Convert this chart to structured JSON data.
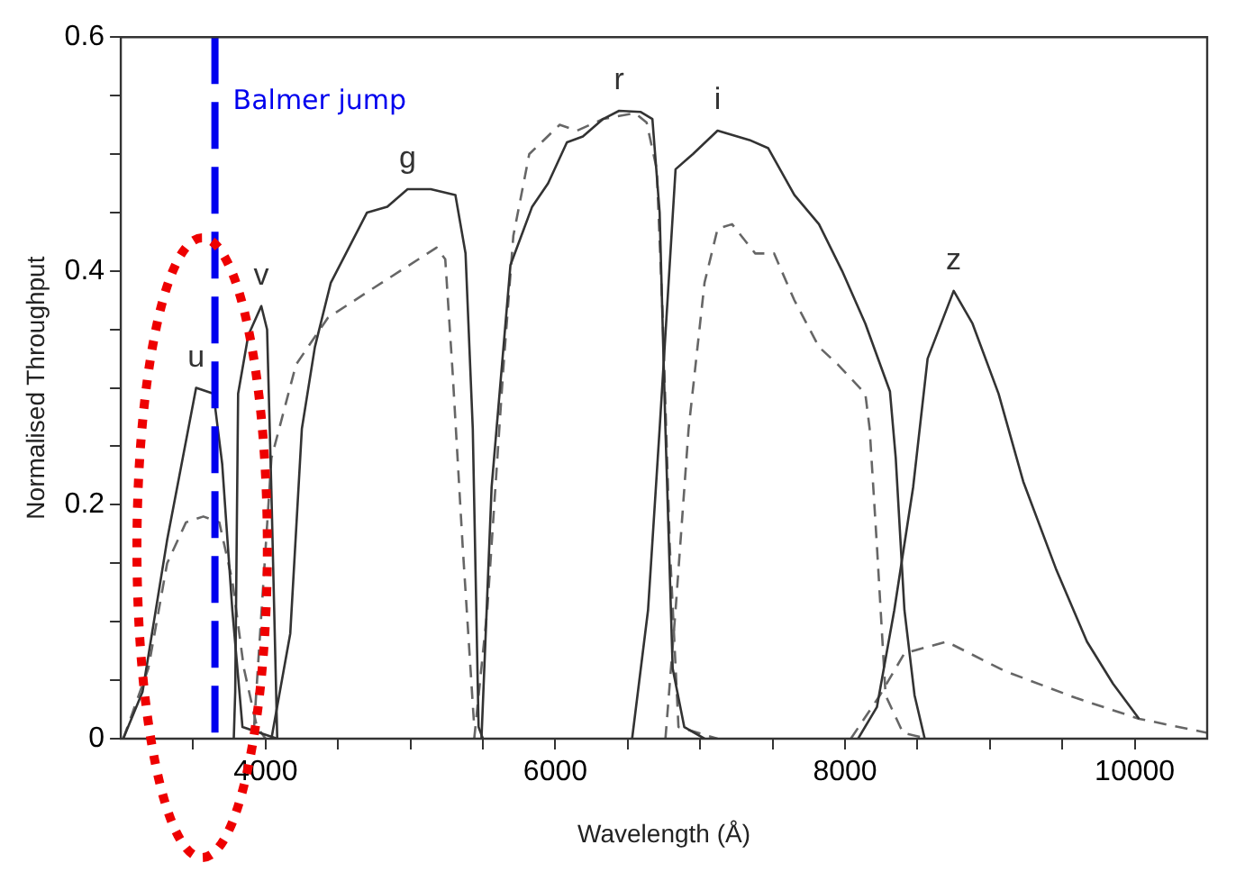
{
  "chart_data": {
    "type": "line",
    "xlabel": "Wavelength (Å)",
    "ylabel": "Normalised Throughput",
    "xlim": [
      3000,
      10500
    ],
    "ylim": [
      0,
      0.6
    ],
    "xticks": [
      {
        "value": 3500,
        "label": null
      },
      4000,
      {
        "value": 4500,
        "label": null
      },
      {
        "value": 5000,
        "label": null
      },
      {
        "value": 5500,
        "label": null
      },
      6000,
      {
        "value": 6500,
        "label": null
      },
      {
        "value": 7000,
        "label": null
      },
      {
        "value": 7500,
        "label": null
      },
      8000,
      {
        "value": 8500,
        "label": null
      },
      {
        "value": 9000,
        "label": null
      },
      {
        "value": 9500,
        "label": null
      },
      10000
    ],
    "yticks": [
      0,
      {
        "value": 0.05,
        "label": null
      },
      {
        "value": 0.1,
        "label": null
      },
      {
        "value": 0.15,
        "label": null
      },
      0.2,
      {
        "value": 0.25,
        "label": null
      },
      {
        "value": 0.3,
        "label": null
      },
      {
        "value": 0.35,
        "label": null
      },
      0.4,
      {
        "value": 0.45,
        "label": null
      },
      {
        "value": 0.5,
        "label": null
      },
      {
        "value": 0.55,
        "label": null
      },
      0.6
    ],
    "grid": false,
    "legend": false,
    "marker": "none",
    "series": [
      {
        "name": "u",
        "color": "#333333",
        "line_style": "solid",
        "x": [
          3017,
          3150,
          3320,
          3520,
          3640,
          3700,
          3770,
          3840,
          4080
        ],
        "values": [
          0,
          0.04,
          0.17,
          0.3,
          0.295,
          0.235,
          0.11,
          0.01,
          0
        ]
      },
      {
        "name": "v",
        "color": "#333333",
        "line_style": "solid",
        "x": [
          3780,
          3790,
          3810,
          3880,
          3970,
          4010,
          4040,
          4080
        ],
        "values": [
          0,
          0.04,
          0.295,
          0.345,
          0.37,
          0.35,
          0.21,
          0
        ]
      },
      {
        "name": "g",
        "color": "#333333",
        "line_style": "solid",
        "x": [
          4040,
          4170,
          4250,
          4340,
          4450,
          4700,
          4840,
          4980,
          5140,
          5310,
          5380,
          5430,
          5470,
          5500
        ],
        "values": [
          0,
          0.09,
          0.265,
          0.335,
          0.39,
          0.45,
          0.455,
          0.47,
          0.47,
          0.465,
          0.415,
          0.265,
          0.01,
          0
        ]
      },
      {
        "name": "r",
        "color": "#333333",
        "line_style": "solid",
        "x": [
          5490,
          5560,
          5690,
          5840,
          5950,
          6080,
          6190,
          6330,
          6440,
          6590,
          6670,
          6720,
          6760,
          6810,
          6890,
          7030
        ],
        "values": [
          0,
          0.215,
          0.405,
          0.455,
          0.475,
          0.51,
          0.515,
          0.53,
          0.537,
          0.536,
          0.53,
          0.45,
          0.265,
          0.06,
          0.01,
          0
        ]
      },
      {
        "name": "i",
        "color": "#333333",
        "line_style": "solid",
        "x": [
          6530,
          6640,
          6720,
          6830,
          6950,
          7120,
          7340,
          7470,
          7650,
          7820,
          7980,
          8140,
          8310,
          8350,
          8410,
          8480,
          8550
        ],
        "values": [
          0,
          0.11,
          0.265,
          0.487,
          0.5,
          0.52,
          0.512,
          0.505,
          0.465,
          0.44,
          0.4,
          0.355,
          0.297,
          0.24,
          0.11,
          0.037,
          0
        ]
      },
      {
        "name": "z",
        "color": "#333333",
        "line_style": "solid",
        "x": [
          8090,
          8220,
          8340,
          8470,
          8570,
          8750,
          8880,
          9060,
          9230,
          9460,
          9670,
          9850,
          10030
        ],
        "values": [
          0,
          0.027,
          0.11,
          0.215,
          0.325,
          0.383,
          0.355,
          0.295,
          0.22,
          0.144,
          0.083,
          0.047,
          0.017
        ]
      },
      {
        "color": "#666666",
        "line_style": "dashed",
        "x": [
          3017,
          3190,
          3320,
          3450,
          3570,
          3680,
          3770,
          3850,
          3940,
          4000
        ],
        "values": [
          0,
          0.06,
          0.15,
          0.185,
          0.19,
          0.185,
          0.135,
          0.06,
          0.01,
          0
        ]
      },
      {
        "color": "#666666",
        "line_style": "dashed",
        "x": [
          3920,
          4040,
          4210,
          4430,
          4740,
          5180,
          5240,
          5290,
          5360,
          5440
        ],
        "values": [
          0.01,
          0.24,
          0.32,
          0.36,
          0.385,
          0.42,
          0.41,
          0.315,
          0.165,
          0.01
        ]
      },
      {
        "color": "#666666",
        "line_style": "dashed",
        "x": [
          5440,
          5530,
          5640,
          5710,
          5820,
          6030,
          6150,
          6330,
          6550,
          6630,
          6700,
          6740,
          6790,
          6850,
          7120
        ],
        "values": [
          0,
          0.11,
          0.315,
          0.43,
          0.5,
          0.525,
          0.52,
          0.53,
          0.535,
          0.527,
          0.487,
          0.365,
          0.165,
          0.01,
          0
        ]
      },
      {
        "color": "#666666",
        "line_style": "dashed",
        "x": [
          6760,
          6830,
          6920,
          7030,
          7120,
          7220,
          7380,
          7510,
          7650,
          7820,
          7950,
          8140,
          8170,
          8220,
          8280,
          8400,
          8570
        ],
        "values": [
          0,
          0.11,
          0.265,
          0.39,
          0.436,
          0.44,
          0.415,
          0.415,
          0.375,
          0.335,
          0.32,
          0.295,
          0.265,
          0.165,
          0.037,
          0.005,
          0
        ]
      },
      {
        "color": "#666666",
        "line_style": "dashed",
        "x": [
          8040,
          8240,
          8410,
          8700,
          9100,
          9590,
          10030,
          10500
        ],
        "values": [
          0,
          0.037,
          0.073,
          0.083,
          0.058,
          0.035,
          0.017,
          0.005
        ]
      }
    ],
    "ref_lines": [
      {
        "axis": "x",
        "value": 3650,
        "label": "Balmer jump",
        "color": "#0000ee",
        "line_style": "dashed"
      }
    ]
  }
}
